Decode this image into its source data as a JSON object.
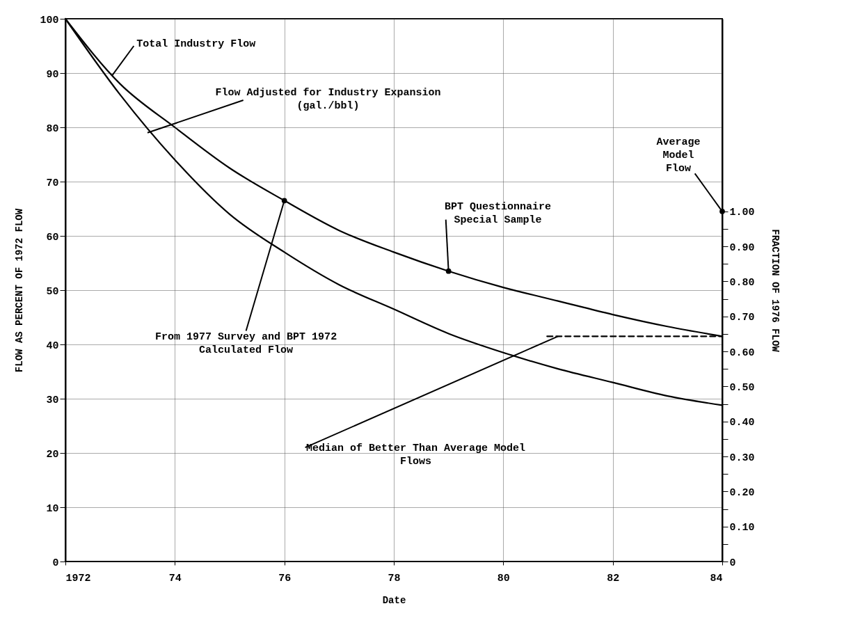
{
  "chart_data": {
    "type": "line",
    "xlabel": "Date",
    "ylabel": "FLOW AS PERCENT OF 1972 FLOW",
    "y2label": "FRACTION OF 1976 FLOW",
    "x": [
      1972,
      1973,
      1974,
      1975,
      1976,
      1977,
      1978,
      1979,
      1980,
      1981,
      1982,
      1983,
      1984
    ],
    "series": [
      {
        "color": "#000000",
        "values": [
          100,
          88,
          80,
          72.5,
          66.5,
          61,
          57,
          53.5,
          50.5,
          48,
          45.5,
          43.3,
          41.5
        ]
      },
      {
        "color": "#000000",
        "values": [
          100,
          86,
          74,
          64,
          57,
          51,
          46.5,
          42,
          38.5,
          35.5,
          33,
          30.5,
          28.8
        ]
      },
      {
        "type": "line",
        "color": "#000000",
        "line_style": "dashed",
        "x": [
          1980.8,
          1984
        ],
        "values": [
          41.5,
          41.5
        ]
      },
      {
        "type": "scatter",
        "color": "#000000",
        "marker": "circle",
        "x": [
          1976,
          1979
        ],
        "values": [
          66.5,
          53.5
        ]
      },
      {
        "type": "scatter",
        "color": "#000000",
        "marker": "circle",
        "axis": "y2",
        "x": [
          1984
        ],
        "values": [
          1.0
        ]
      }
    ],
    "xlim": [
      1972,
      1984
    ],
    "xticks": [
      1972,
      {
        "value": 1974,
        "label": "74"
      },
      {
        "value": 1976,
        "label": "76"
      },
      {
        "value": 1978,
        "label": "78"
      },
      {
        "value": 1980,
        "label": "80"
      },
      {
        "value": 1982,
        "label": "82"
      },
      {
        "value": 1984,
        "label": "84"
      }
    ],
    "ylim": [
      0,
      100
    ],
    "yticks": [
      0,
      10,
      20,
      30,
      40,
      50,
      60,
      70,
      80,
      90,
      100
    ],
    "y2lim": [
      0,
      1.55
    ],
    "y2ticks": [
      0,
      {
        "value": 0.05,
        "label": null
      },
      {
        "value": 0.1,
        "label": "0.10"
      },
      {
        "value": 0.15,
        "label": null
      },
      {
        "value": 0.2,
        "label": "0.20"
      },
      {
        "value": 0.25,
        "label": null
      },
      {
        "value": 0.3,
        "label": "0.30"
      },
      {
        "value": 0.35,
        "label": null
      },
      {
        "value": 0.4,
        "label": "0.40"
      },
      {
        "value": 0.45,
        "label": null
      },
      {
        "value": 0.5,
        "label": "0.50"
      },
      {
        "value": 0.55,
        "label": null
      },
      {
        "value": 0.6,
        "label": "0.60"
      },
      {
        "value": 0.65,
        "label": null
      },
      {
        "value": 0.7,
        "label": "0.70"
      },
      {
        "value": 0.75,
        "label": null
      },
      {
        "value": 0.8,
        "label": "0.80"
      },
      {
        "value": 0.85,
        "label": null
      },
      {
        "value": 0.9,
        "label": "0.90"
      },
      {
        "value": 0.95,
        "label": null
      },
      {
        "value": 1.0,
        "label": "1.00"
      }
    ],
    "grid": true,
    "annotations": [
      {
        "text": "Total Industry Flow",
        "x": 1972.85,
        "y": 89.5
      },
      {
        "text": "Flow Adjusted for Industry Expansion\n(gal./bbl)",
        "x": 1973.5,
        "y": 79
      },
      {
        "text": "From 1977 Survey and BPT 1972\nCalculated Flow",
        "x": 1976,
        "y": 66.5
      },
      {
        "text": "BPT Questionnaire\nSpecial Sample",
        "x": 1979,
        "y": 53.5
      },
      {
        "text": "Average\nModel\nFlow",
        "x": 1984,
        "y": 64.5
      },
      {
        "text": "Median of Better Than Average Model\nFlows",
        "x": 1981,
        "y": 41.5
      }
    ]
  }
}
